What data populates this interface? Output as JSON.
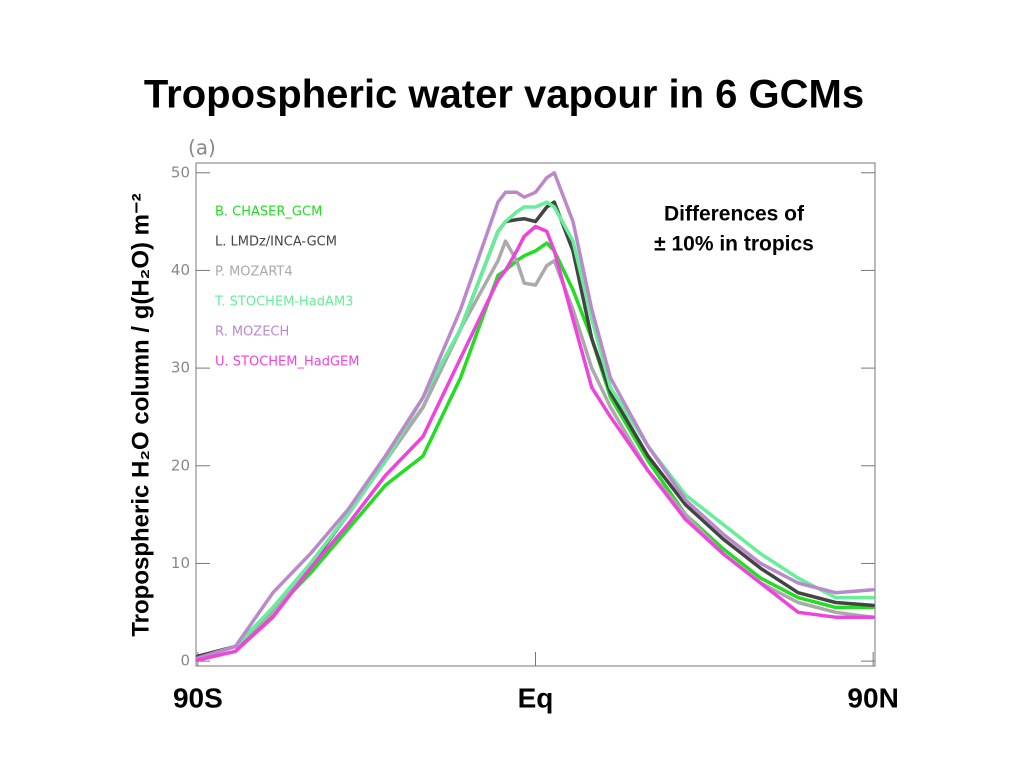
{
  "chart_data": {
    "type": "line",
    "title": "Tropospheric water vapour in 6 GCMs",
    "panel_label": "(a)",
    "y_label": "Tropospheric H₂O column  / g(H₂O) m⁻²",
    "annotation": [
      "Differences of",
      "± 10% in tropics"
    ],
    "x": [
      -90,
      -80,
      -70,
      -60,
      -50,
      -40,
      -30,
      -20,
      -10,
      -8,
      -5,
      -3,
      0,
      3,
      5,
      10,
      15,
      20,
      30,
      40,
      50,
      60,
      70,
      80,
      90
    ],
    "series": [
      {
        "name": "B. CHASER_GCM",
        "color": "#22dd22",
        "values": [
          0.3,
          1.5,
          5,
          9,
          13.5,
          18,
          21,
          29,
          39.5,
          40,
          41,
          41.5,
          42,
          42.8,
          42,
          38,
          33,
          27,
          20.5,
          15,
          11.5,
          8.5,
          6.5,
          5.5,
          5.5
        ]
      },
      {
        "name": "L. LMDz/INCA-GCM",
        "color": "#444444",
        "values": [
          0.5,
          1.5,
          4.7,
          9.8,
          15,
          20.5,
          26,
          34,
          44,
          45,
          45.2,
          45.3,
          45,
          46.5,
          47,
          42,
          33,
          27.5,
          21,
          16,
          12.5,
          9.5,
          7,
          6,
          5.7
        ]
      },
      {
        "name": "P. MOZART4",
        "color": "#aaaaaa",
        "values": [
          0.3,
          1.5,
          5,
          10,
          15,
          20.5,
          26,
          34,
          41,
          43,
          41,
          38.7,
          38.5,
          40.5,
          41,
          36,
          30,
          26,
          19.5,
          15,
          11,
          8,
          6,
          5,
          4.5
        ]
      },
      {
        "name": "T. STOCHEM-HadAM3",
        "color": "#66ee99",
        "values": [
          0.3,
          1.5,
          5.5,
          10,
          15,
          20.5,
          27,
          34,
          44,
          45,
          46,
          46.5,
          46.5,
          47,
          46.5,
          43,
          35,
          28,
          22,
          17,
          14,
          11,
          8.5,
          6.5,
          6.5
        ]
      },
      {
        "name": "R. MOZECH",
        "color": "#bb88cc",
        "values": [
          0.3,
          1.5,
          7,
          11,
          15.5,
          21,
          27,
          36,
          47,
          48,
          48,
          47.5,
          48,
          49.5,
          50,
          45,
          36,
          29,
          22,
          16.5,
          13,
          10,
          8,
          7,
          7.3
        ]
      },
      {
        "name": "U. STOCHEM_HadGEM",
        "color": "#ee44dd",
        "values": [
          0.1,
          1,
          4.5,
          9.5,
          14,
          19,
          23,
          31,
          39,
          40,
          42,
          43.5,
          44.5,
          44,
          42,
          35,
          28,
          25,
          19.5,
          14.5,
          11,
          8,
          5,
          4.5,
          4.5
        ]
      }
    ],
    "xlim": [
      -90.5,
      90.5
    ],
    "xticks": [
      {
        "value": -90,
        "label": "90S"
      },
      {
        "value": 0,
        "label": "Eq"
      },
      {
        "value": 90,
        "label": "90N"
      }
    ],
    "ylim": [
      -0.5,
      51
    ],
    "yticks": [
      0,
      10,
      20,
      30,
      40,
      50
    ],
    "legend": "upper left"
  }
}
